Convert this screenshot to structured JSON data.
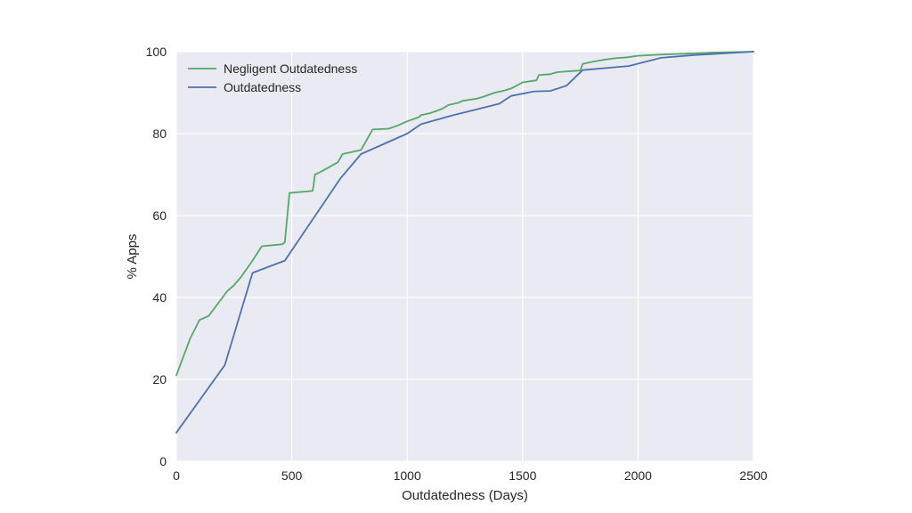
{
  "chart_data": {
    "type": "line",
    "title": "",
    "xlabel": "Outdatedness (Days)",
    "ylabel": "% Apps",
    "xlim": [
      0,
      2500
    ],
    "ylim": [
      0,
      100
    ],
    "xticks": [
      0,
      500,
      1000,
      1500,
      2000,
      2500
    ],
    "yticks": [
      0,
      20,
      40,
      60,
      80,
      100
    ],
    "grid": true,
    "background": "#eaeaf2",
    "legend_position": "top-left",
    "series": [
      {
        "name": "Negligent Outdatedness",
        "color": "#55a868",
        "x": [
          0,
          20,
          60,
          100,
          120,
          140,
          160,
          200,
          220,
          250,
          280,
          330,
          370,
          460,
          470,
          490,
          590,
          595,
          600,
          620,
          700,
          720,
          800,
          850,
          920,
          960,
          1000,
          1050,
          1060,
          1100,
          1150,
          1180,
          1220,
          1240,
          1300,
          1330,
          1380,
          1420,
          1450,
          1500,
          1560,
          1570,
          1620,
          1650,
          1700,
          1750,
          1760,
          1800,
          1850,
          1900,
          1950,
          2000,
          2100,
          2200,
          2340,
          2500
        ],
        "y": [
          21,
          24,
          30,
          34.5,
          35,
          35.5,
          37,
          40,
          41.5,
          43,
          45,
          49,
          52.5,
          53,
          53.5,
          65.5,
          66,
          67.5,
          70,
          70.5,
          73,
          75,
          76,
          81,
          81.2,
          82,
          83,
          84,
          84.5,
          85,
          86,
          87,
          87.5,
          88,
          88.5,
          89,
          90,
          90.5,
          91,
          92.5,
          93,
          94.3,
          94.5,
          95,
          95.2,
          95.4,
          97,
          97.5,
          98,
          98.4,
          98.6,
          99,
          99.3,
          99.5,
          99.8,
          100
        ]
      },
      {
        "name": "Outdatedness",
        "color": "#4c72b0",
        "x": [
          0,
          210,
          330,
          470,
          710,
          800,
          1000,
          1060,
          1200,
          1400,
          1450,
          1550,
          1620,
          1690,
          1760,
          1960,
          2100,
          2250,
          2500
        ],
        "y": [
          7,
          23.5,
          46,
          49,
          69,
          75,
          80,
          82.3,
          84.5,
          87.3,
          89.2,
          90.3,
          90.4,
          91.7,
          95.5,
          96.5,
          98.5,
          99.2,
          100
        ]
      }
    ]
  }
}
